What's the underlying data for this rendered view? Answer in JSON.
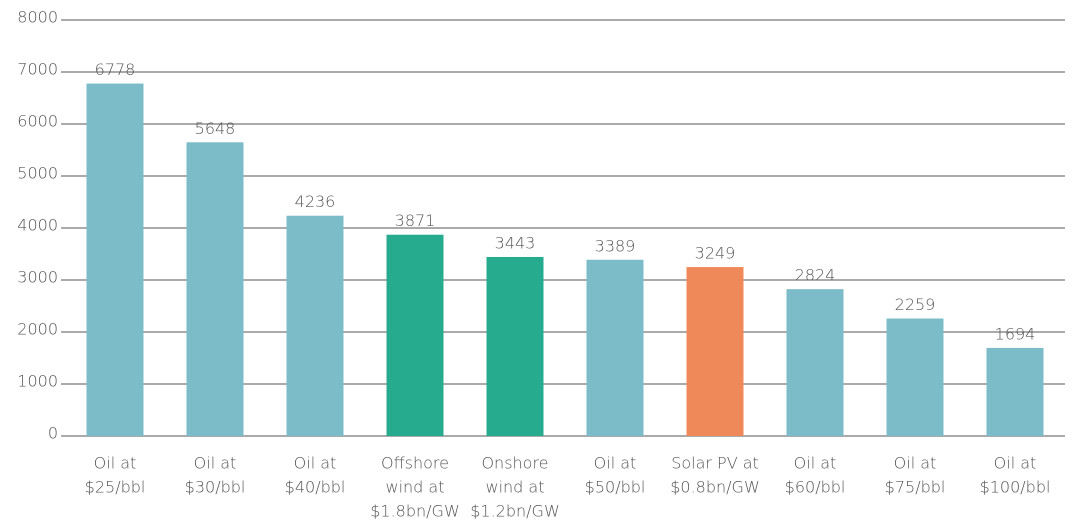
{
  "chart_data": {
    "type": "bar",
    "categories": [
      [
        "Oil at",
        "$25/bbl"
      ],
      [
        "Oil at",
        "$30/bbl"
      ],
      [
        "Oil at",
        "$40/bbl"
      ],
      [
        "Offshore",
        "wind at",
        "$1.8bn/GW"
      ],
      [
        "Onshore",
        "wind at",
        "$1.2bn/GW"
      ],
      [
        "Oil at",
        "$50/bbl"
      ],
      [
        "Solar PV at",
        "$0.8bn/GW"
      ],
      [
        "Oil at",
        "$60/bbl"
      ],
      [
        "Oil at",
        "$75/bbl"
      ],
      [
        "Oil at",
        "$100/bbl"
      ]
    ],
    "values": [
      6778,
      5648,
      4236,
      3871,
      3443,
      3389,
      3249,
      2824,
      2259,
      1694
    ],
    "colors": [
      "#7bbcc8",
      "#7bbcc8",
      "#7bbcc8",
      "#27ab8f",
      "#27ab8f",
      "#7bbcc8",
      "#f0895a",
      "#7bbcc8",
      "#7bbcc8",
      "#7bbcc8"
    ],
    "ylim": [
      0,
      8000
    ],
    "yticks": [
      0,
      1000,
      2000,
      3000,
      4000,
      5000,
      6000,
      7000,
      8000
    ],
    "grid": true
  }
}
